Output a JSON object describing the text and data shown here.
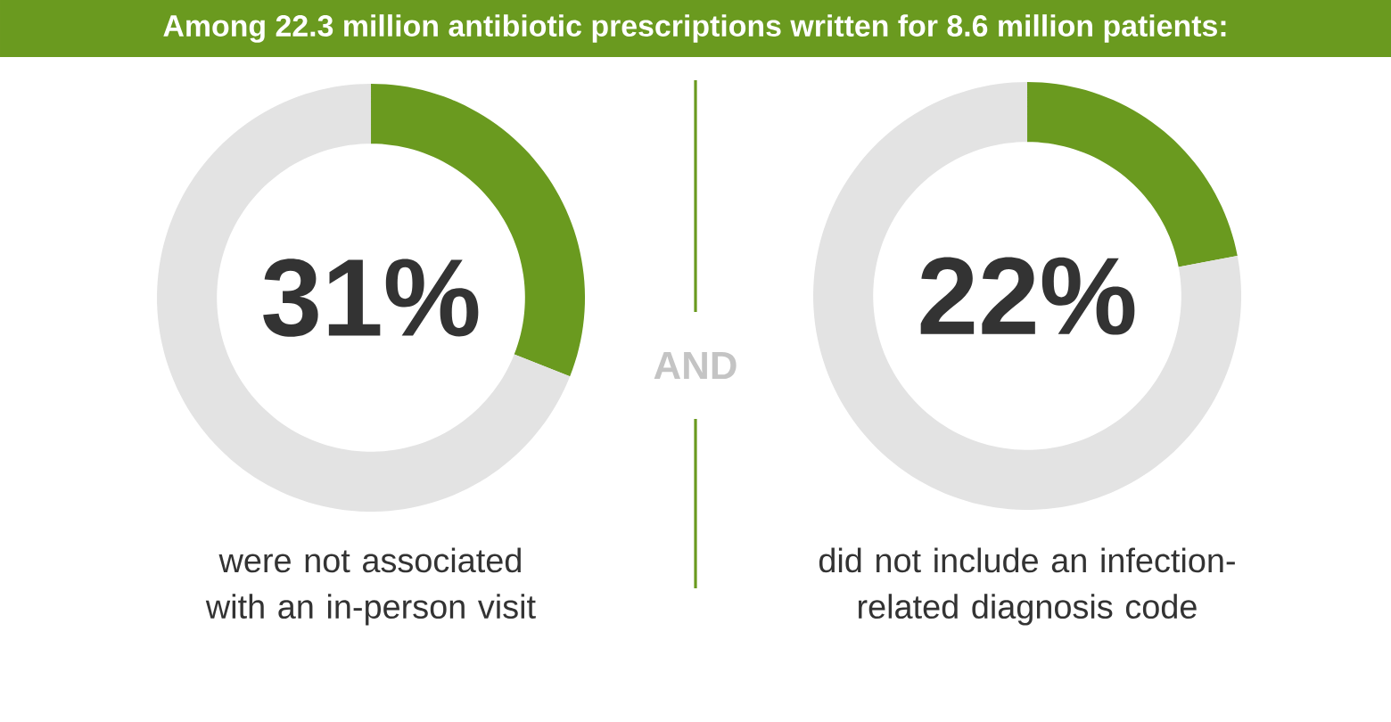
{
  "chart_data": [
    {
      "type": "other",
      "title": "Among 22.3 million antibiotic prescriptions written for 8.6 million patients:",
      "annotations": [
        "AND"
      ]
    },
    {
      "type": "donut",
      "categories": [
        null,
        null
      ],
      "values": [
        31,
        69
      ],
      "colors": [
        "#6a9a1f",
        "#e3e3e3"
      ],
      "annotations": [
        "31%",
        "were not associated with an in-person visit"
      ]
    },
    {
      "type": "donut",
      "categories": [
        null,
        null
      ],
      "values": [
        22,
        78
      ],
      "colors": [
        "#6a9a1f",
        "#e3e3e3"
      ],
      "annotations": [
        "22%",
        "did not include an infection-related diagnosis code"
      ]
    }
  ]
}
